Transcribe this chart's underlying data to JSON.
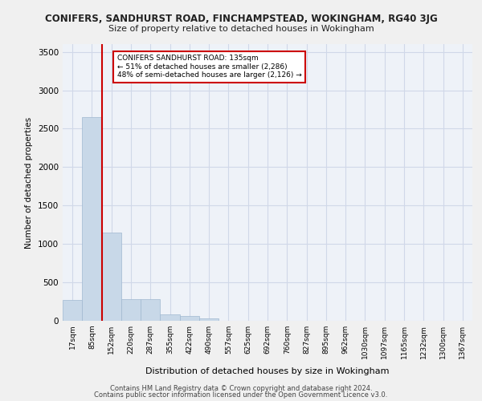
{
  "title1": "CONIFERS, SANDHURST ROAD, FINCHAMPSTEAD, WOKINGHAM, RG40 3JG",
  "title2": "Size of property relative to detached houses in Wokingham",
  "xlabel": "Distribution of detached houses by size in Wokingham",
  "ylabel": "Number of detached properties",
  "annotation_title": "CONIFERS SANDHURST ROAD: 135sqm",
  "annotation_line1": "← 51% of detached houses are smaller (2,286)",
  "annotation_line2": "48% of semi-detached houses are larger (2,126) →",
  "footer1": "Contains HM Land Registry data © Crown copyright and database right 2024.",
  "footer2": "Contains public sector information licensed under the Open Government Licence v3.0.",
  "bar_color": "#c8d8e8",
  "bar_edge_color": "#a0b8d0",
  "grid_color": "#d0d8e8",
  "annotation_box_color": "#ffffff",
  "annotation_box_edge": "#cc0000",
  "vline_color": "#cc0000",
  "plot_bg_color": "#eef2f8",
  "fig_bg_color": "#f0f0f0",
  "tick_labels": [
    "17sqm",
    "85sqm",
    "152sqm",
    "220sqm",
    "287sqm",
    "355sqm",
    "422sqm",
    "490sqm",
    "557sqm",
    "625sqm",
    "692sqm",
    "760sqm",
    "827sqm",
    "895sqm",
    "962sqm",
    "1030sqm",
    "1097sqm",
    "1165sqm",
    "1232sqm",
    "1300sqm",
    "1367sqm"
  ],
  "bar_values": [
    275,
    2650,
    1150,
    285,
    285,
    80,
    60,
    35,
    0,
    0,
    0,
    0,
    0,
    0,
    0,
    0,
    0,
    0,
    0,
    0,
    0
  ],
  "ylim": [
    0,
    3600
  ],
  "yticks": [
    0,
    500,
    1000,
    1500,
    2000,
    2500,
    3000,
    3500
  ],
  "vline_x": 1.5
}
